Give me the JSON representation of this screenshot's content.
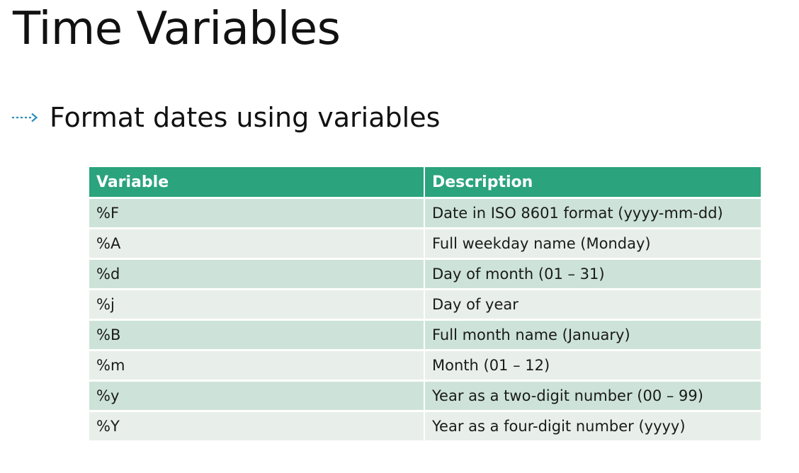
{
  "slide": {
    "title": "Time Variables",
    "bullet": "Format dates using variables"
  },
  "colors": {
    "header_bg": "#2ba37c",
    "row_odd": "#cde3da",
    "row_even": "#e8efeb",
    "bullet_arrow": "#2a8fb8"
  },
  "bullet_icon": "dotted-arrow-icon",
  "table": {
    "headers": [
      "Variable",
      "Description"
    ],
    "rows": [
      [
        "%F",
        "Date in ISO 8601 format (yyyy-mm-dd)"
      ],
      [
        "%A",
        "Full weekday name (Monday)"
      ],
      [
        "%d",
        "Day of month (01 – 31)"
      ],
      [
        "%j",
        "Day of year"
      ],
      [
        "%B",
        "Full month name (January)"
      ],
      [
        "%m",
        "Month (01 – 12)"
      ],
      [
        "%y",
        "Year as a two-digit number (00 – 99)"
      ],
      [
        "%Y",
        "Year as a four-digit number (yyyy)"
      ]
    ]
  }
}
